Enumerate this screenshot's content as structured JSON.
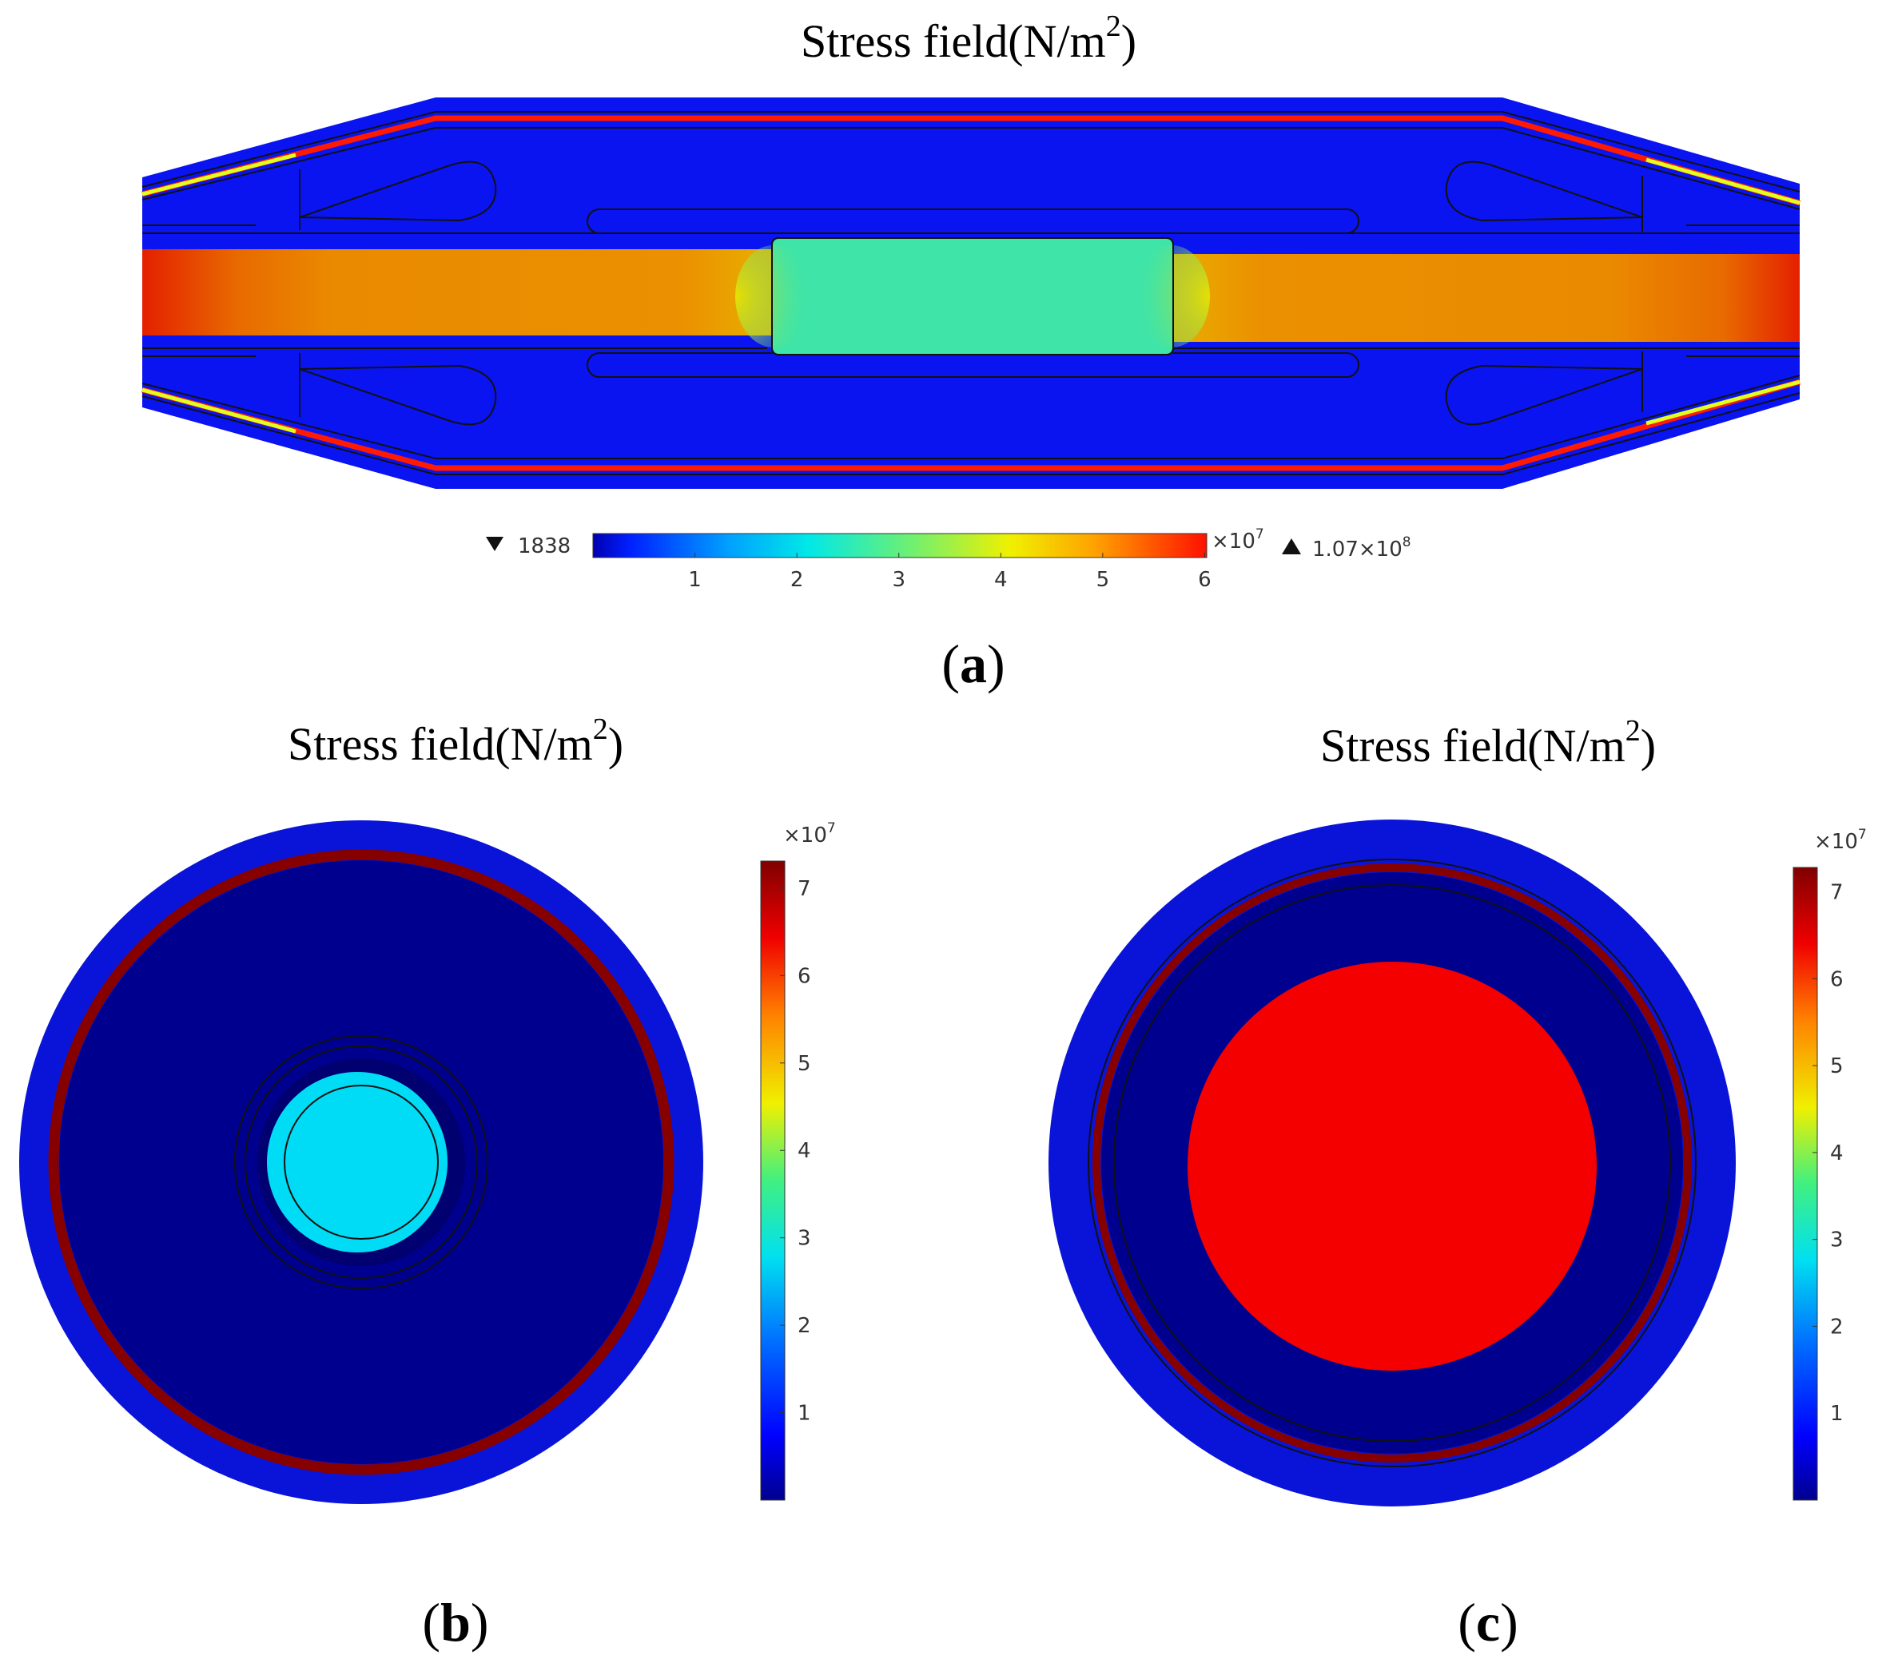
{
  "figure": {
    "panels": [
      {
        "id": "a",
        "title_main": "Stress field(N/m",
        "title_sup": "2",
        "title_close": ")",
        "label": "a",
        "colorbar": {
          "orientation": "horizontal",
          "min_label": "1838",
          "max_label": "1.07×10",
          "max_label_exp": "8",
          "scale_label": "×10",
          "scale_exp": "7",
          "ticks": [
            "1",
            "2",
            "3",
            "4",
            "5",
            "6"
          ]
        }
      },
      {
        "id": "b",
        "title_main": "Stress field(N/m",
        "title_sup": "2",
        "title_close": ")",
        "label": "b",
        "colorbar": {
          "orientation": "vertical",
          "scale_label": "×10",
          "scale_exp": "7",
          "ticks": [
            "1",
            "2",
            "3",
            "4",
            "5",
            "6",
            "7"
          ]
        }
      },
      {
        "id": "c",
        "title_main": "Stress field(N/m",
        "title_sup": "2",
        "title_close": ")",
        "label": "c",
        "colorbar": {
          "orientation": "vertical",
          "scale_label": "×10",
          "scale_exp": "7",
          "ticks": [
            "1",
            "2",
            "3",
            "4",
            "5",
            "6",
            "7"
          ]
        }
      }
    ],
    "colors": {
      "jet_dark_blue": "#00008f",
      "blue": "#0000ff",
      "body_blue": "#0a14f0",
      "cyan": "#00dcf5",
      "green_teal": "#3fe4a8",
      "orange": "#ea8a00",
      "red": "#ff1000",
      "dark_red": "#860000",
      "yellow": "#ffff00"
    }
  }
}
